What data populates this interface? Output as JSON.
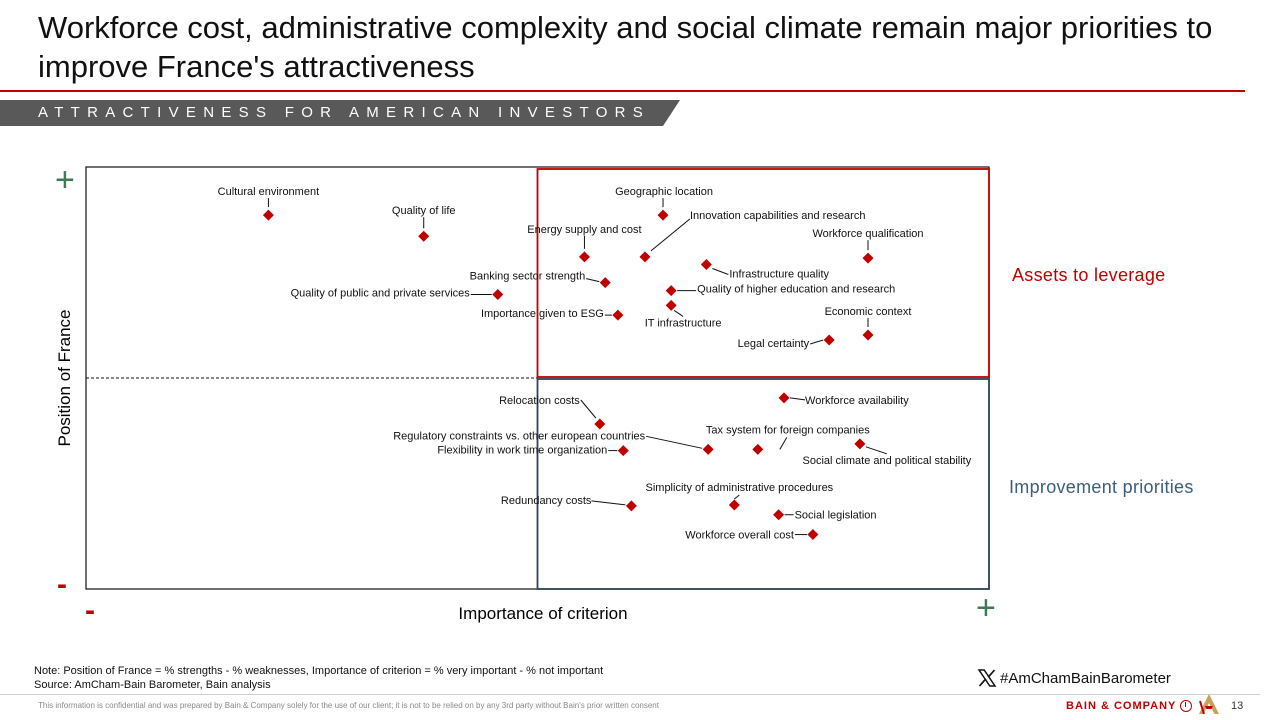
{
  "slide": {
    "title": "Workforce cost, administrative complexity and social climate remain major priorities to improve France's attractiveness",
    "section_banner": "ATTRACTIVENESS FOR AMERICAN INVESTORS",
    "quadrant_labels": {
      "top_right": "Assets to leverage",
      "bottom_right": "Improvement priorities"
    },
    "axis_signs": {
      "y_top": "+",
      "y_bottom": "-",
      "x_left": "-",
      "x_right": "+"
    },
    "note": "Note: Position of France = % strengths - % weaknesses, Importance of criterion = % very important - % not important",
    "source": "Source: AmCham-Bain Barometer, Bain analysis",
    "hashtag": "#AmChamBainBarometer",
    "confidential": "This information is confidential and was prepared by Bain & Company solely for the use of our client; it is not to be relied on by any 3rd party without Bain's prior written consent",
    "brand": "BAIN & COMPANY",
    "page_number": "13"
  },
  "colors": {
    "marker": "#c00000",
    "assets_frame": "#c00000",
    "priorities_frame": "#2e4559",
    "accent_green": "#3e7a55",
    "priorities_text": "#3b5f7a",
    "banner": "#595959"
  },
  "icons": {
    "social": "x-logo-icon",
    "brand": "power-icon",
    "partner": "amcham-logo"
  },
  "chart_data": {
    "type": "scatter",
    "xlabel": "Importance of criterion",
    "ylabel": "Position of France",
    "xlim": [
      0,
      100
    ],
    "ylim": [
      0,
      100
    ],
    "grid": false,
    "divider_x": 50,
    "divider_y": 50,
    "points": [
      {
        "label": "Cultural environment",
        "x": 20.2,
        "y": 88.6
      },
      {
        "label": "Quality of life",
        "x": 37.4,
        "y": 83.6
      },
      {
        "label": "Geographic location",
        "x": 63.9,
        "y": 88.6
      },
      {
        "label": "Innovation capabilities and research",
        "x": 61.9,
        "y": 78.7
      },
      {
        "label": "Energy supply and cost",
        "x": 55.2,
        "y": 78.7
      },
      {
        "label": "Workforce qualification",
        "x": 86.6,
        "y": 78.4
      },
      {
        "label": "Infrastructure quality",
        "x": 68.7,
        "y": 76.9
      },
      {
        "label": "Banking sector strength",
        "x": 57.5,
        "y": 72.6
      },
      {
        "label": "Quality of public and private services",
        "x": 45.6,
        "y": 69.8
      },
      {
        "label": "Quality of higher education and research",
        "x": 64.8,
        "y": 70.7
      },
      {
        "label": "IT infrastructure",
        "x": 64.8,
        "y": 67.2
      },
      {
        "label": "Importance given to ESG",
        "x": 58.9,
        "y": 64.9
      },
      {
        "label": "Economic context",
        "x": 86.6,
        "y": 60.2
      },
      {
        "label": "Legal certainty",
        "x": 82.3,
        "y": 59.0
      },
      {
        "label": "Workforce availability",
        "x": 77.3,
        "y": 45.3
      },
      {
        "label": "Relocation costs",
        "x": 56.9,
        "y": 39.1
      },
      {
        "label": "Tax system for foreign companies",
        "x": 74.4,
        "y": 33.1
      },
      {
        "label": "Social climate and political stability",
        "x": 85.7,
        "y": 34.4
      },
      {
        "label": "Regulatory constraints vs. other european countries",
        "x": 68.9,
        "y": 33.1
      },
      {
        "label": "Flexibility in work time organization",
        "x": 59.5,
        "y": 32.8
      },
      {
        "label": "Simplicity of administrative procedures",
        "x": 71.8,
        "y": 19.9
      },
      {
        "label": "Redundancy costs",
        "x": 60.4,
        "y": 19.7
      },
      {
        "label": "Social legislation",
        "x": 76.7,
        "y": 17.6
      },
      {
        "label": "Workforce overall cost",
        "x": 80.5,
        "y": 12.9
      }
    ]
  }
}
